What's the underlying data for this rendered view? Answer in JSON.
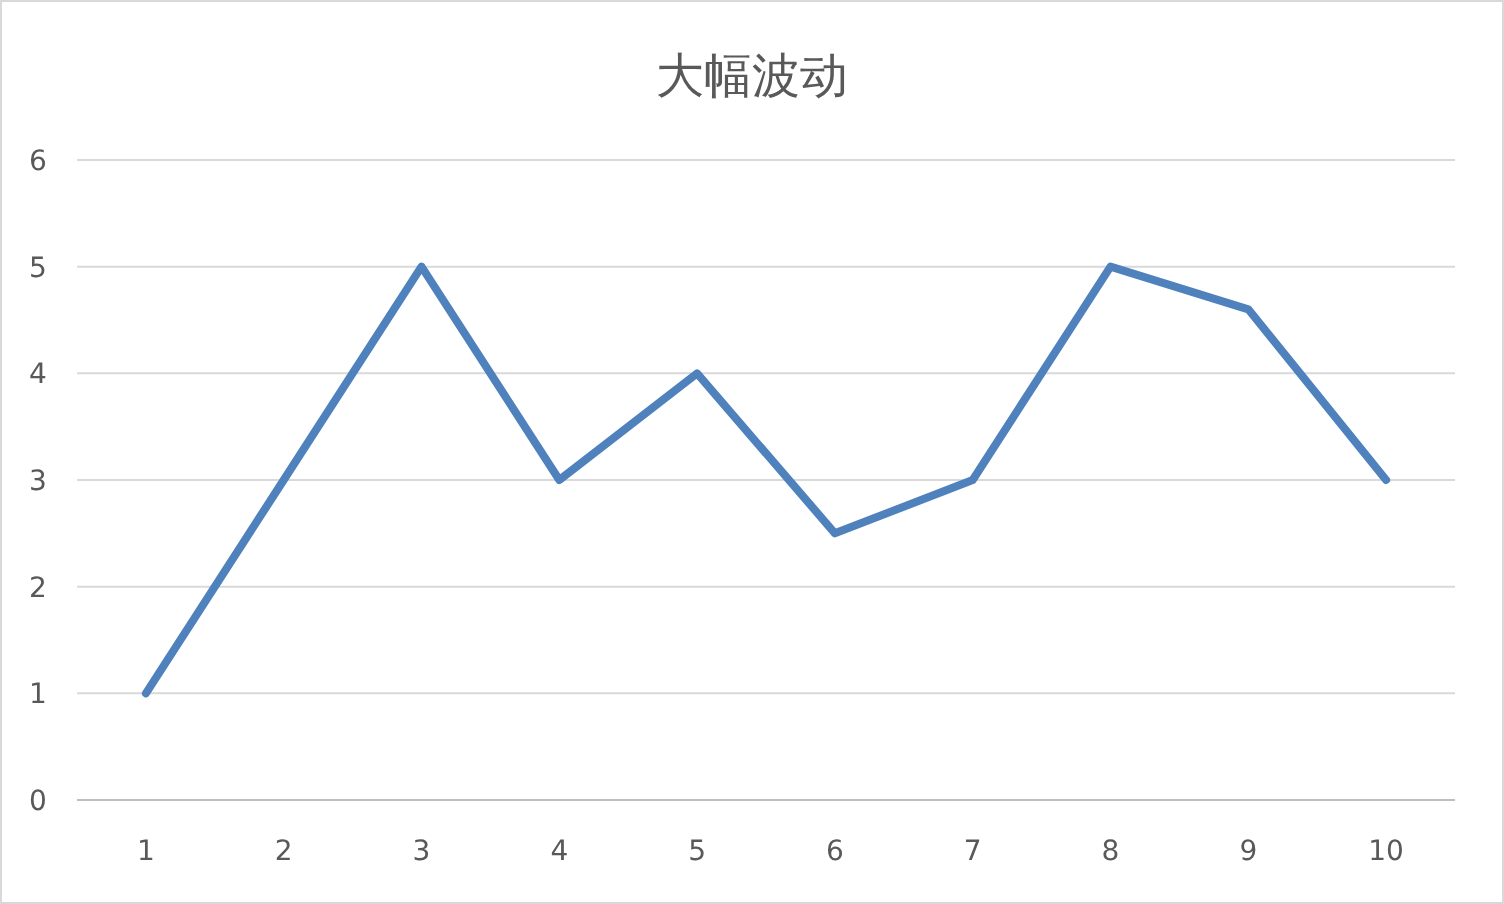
{
  "chart_data": {
    "type": "line",
    "title": "大幅波动",
    "categories": [
      "1",
      "2",
      "3",
      "4",
      "5",
      "6",
      "7",
      "8",
      "9",
      "10"
    ],
    "values": [
      1,
      3,
      5,
      3,
      4,
      2.5,
      3,
      5,
      4.6,
      3
    ],
    "color": "#4f81bd",
    "ylim": [
      0,
      6
    ],
    "yticks": [
      0,
      1,
      2,
      3,
      4,
      5,
      6
    ],
    "grid": "y"
  }
}
